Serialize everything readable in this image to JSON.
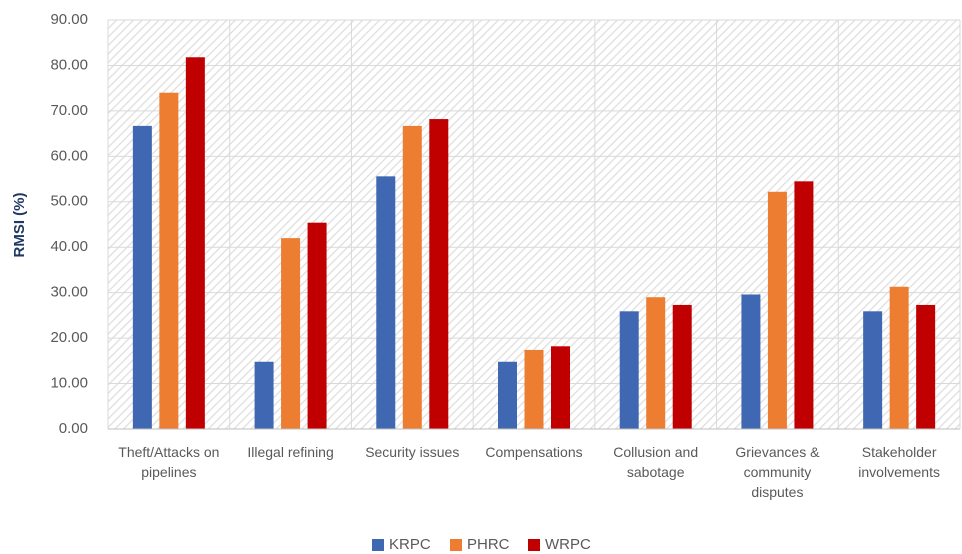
{
  "chart_data": {
    "type": "bar",
    "y_label": "RMSI (%)",
    "categories": [
      "Theft/Attacks on pipelines",
      "Illegal refining",
      "Security issues",
      "Compensations",
      "Collusion and sabotage",
      "Grievances & community disputes",
      "Stakeholder involvements"
    ],
    "series": [
      {
        "name": "KRPC",
        "color": "#4068b2",
        "values": [
          66.7,
          14.8,
          55.6,
          14.8,
          25.9,
          29.6,
          25.9
        ]
      },
      {
        "name": "PHRC",
        "color": "#ed7d31",
        "values": [
          74.0,
          42.0,
          66.7,
          17.4,
          29.0,
          52.2,
          31.3
        ]
      },
      {
        "name": "WRPC",
        "color": "#c00000",
        "values": [
          81.8,
          45.4,
          68.2,
          18.2,
          27.3,
          54.5,
          27.3
        ]
      }
    ],
    "ylim": [
      0,
      90
    ],
    "yticks": [
      {
        "value": 0,
        "label": "0.00"
      },
      {
        "value": 10,
        "label": "10.00"
      },
      {
        "value": 20,
        "label": "20.00"
      },
      {
        "value": 30,
        "label": "30.00"
      },
      {
        "value": 40,
        "label": "40.00"
      },
      {
        "value": 50,
        "label": "50.00"
      },
      {
        "value": 60,
        "label": "60.00"
      },
      {
        "value": 70,
        "label": "70.00"
      },
      {
        "value": 80,
        "label": "80.00"
      },
      {
        "value": 90,
        "label": "90.00"
      }
    ],
    "grid": true
  }
}
